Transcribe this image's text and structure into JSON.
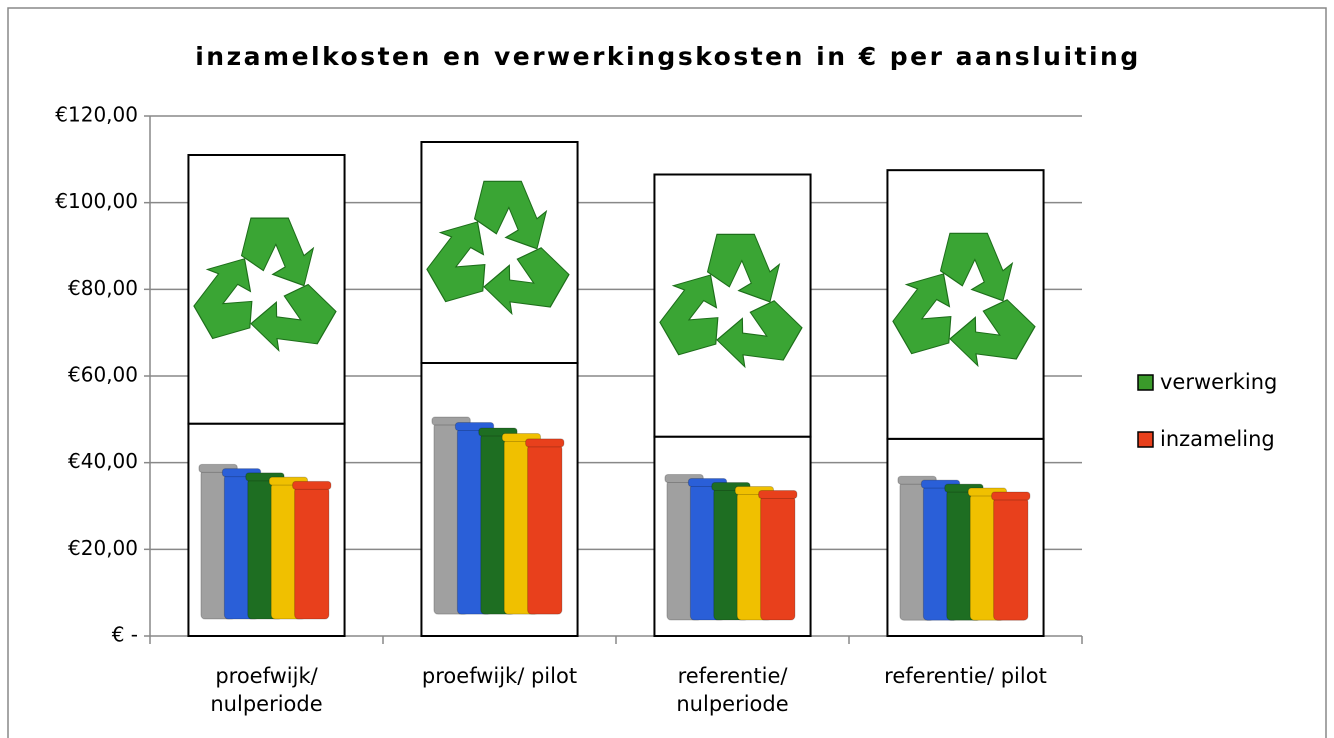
{
  "chart_data": {
    "type": "stacked_bar",
    "title": "inzamelkosten en verwerkingskosten in € per aansluiting",
    "categories": [
      "proefwijk/ nulperiode",
      "proefwijk/ pilot",
      "referentie/ nulperiode",
      "referentie/ pilot"
    ],
    "series": [
      {
        "name": "inzameling",
        "color": "#e8401c",
        "values": [
          49,
          63,
          46,
          45.5
        ]
      },
      {
        "name": "verwerking",
        "color": "#3a9a2a",
        "values": [
          62,
          51,
          60.5,
          62
        ]
      }
    ],
    "ylim": [
      0,
      120
    ],
    "yticks": [
      {
        "value": 0,
        "label": "€ -"
      },
      {
        "value": 20,
        "label": "€20,00"
      },
      {
        "value": 40,
        "label": "€40,00"
      },
      {
        "value": 60,
        "label": "€60,00"
      },
      {
        "value": 80,
        "label": "€80,00"
      },
      {
        "value": 100,
        "label": "€100,00"
      },
      {
        "value": 120,
        "label": "€120,00"
      }
    ],
    "grid": true,
    "legend": "right"
  }
}
